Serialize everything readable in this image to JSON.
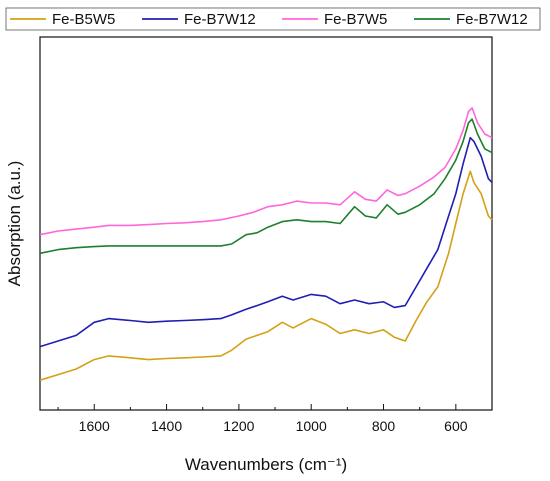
{
  "chart_data": {
    "type": "line",
    "xlabel": "Wavenumbers (cm⁻¹)",
    "ylabel": "Absorption (a.u.)",
    "x_reversed": true,
    "xlim": [
      1750,
      500
    ],
    "ylim": [
      0,
      1
    ],
    "y_ticks_shown": false,
    "grid": false,
    "legend_position": "top",
    "x_ticks": [
      1600,
      1400,
      1200,
      1000,
      800,
      600
    ],
    "x_tick_labels": [
      "1600",
      "1400",
      "1200",
      "1000",
      "800",
      "600"
    ],
    "series": [
      {
        "name": "Fe-B5W5",
        "color": "#D4A017",
        "points": [
          [
            1750,
            0.08
          ],
          [
            1700,
            0.095
          ],
          [
            1650,
            0.11
          ],
          [
            1600,
            0.135
          ],
          [
            1560,
            0.145
          ],
          [
            1500,
            0.14
          ],
          [
            1450,
            0.135
          ],
          [
            1400,
            0.138
          ],
          [
            1350,
            0.14
          ],
          [
            1300,
            0.142
          ],
          [
            1250,
            0.145
          ],
          [
            1220,
            0.16
          ],
          [
            1180,
            0.19
          ],
          [
            1150,
            0.2
          ],
          [
            1120,
            0.21
          ],
          [
            1080,
            0.235
          ],
          [
            1050,
            0.22
          ],
          [
            1000,
            0.245
          ],
          [
            960,
            0.23
          ],
          [
            920,
            0.205
          ],
          [
            880,
            0.215
          ],
          [
            840,
            0.205
          ],
          [
            800,
            0.215
          ],
          [
            770,
            0.195
          ],
          [
            740,
            0.185
          ],
          [
            710,
            0.24
          ],
          [
            680,
            0.29
          ],
          [
            650,
            0.33
          ],
          [
            620,
            0.42
          ],
          [
            600,
            0.5
          ],
          [
            580,
            0.58
          ],
          [
            560,
            0.64
          ],
          [
            550,
            0.61
          ],
          [
            530,
            0.58
          ],
          [
            510,
            0.52
          ],
          [
            500,
            0.51
          ]
        ]
      },
      {
        "name": "Fe-B7W12",
        "color": "#1F1FB4",
        "points": [
          [
            1750,
            0.17
          ],
          [
            1700,
            0.185
          ],
          [
            1650,
            0.2
          ],
          [
            1600,
            0.235
          ],
          [
            1560,
            0.245
          ],
          [
            1500,
            0.24
          ],
          [
            1450,
            0.235
          ],
          [
            1400,
            0.238
          ],
          [
            1350,
            0.24
          ],
          [
            1300,
            0.242
          ],
          [
            1250,
            0.245
          ],
          [
            1220,
            0.255
          ],
          [
            1180,
            0.27
          ],
          [
            1150,
            0.28
          ],
          [
            1120,
            0.29
          ],
          [
            1080,
            0.305
          ],
          [
            1050,
            0.295
          ],
          [
            1000,
            0.31
          ],
          [
            960,
            0.305
          ],
          [
            920,
            0.285
          ],
          [
            880,
            0.295
          ],
          [
            840,
            0.285
          ],
          [
            800,
            0.29
          ],
          [
            770,
            0.275
          ],
          [
            740,
            0.28
          ],
          [
            710,
            0.33
          ],
          [
            680,
            0.38
          ],
          [
            650,
            0.43
          ],
          [
            620,
            0.52
          ],
          [
            600,
            0.58
          ],
          [
            580,
            0.66
          ],
          [
            560,
            0.73
          ],
          [
            550,
            0.72
          ],
          [
            530,
            0.68
          ],
          [
            510,
            0.62
          ],
          [
            500,
            0.61
          ]
        ]
      },
      {
        "name": "Fe-B7W5",
        "color": "#FF66DD",
        "points": [
          [
            1750,
            0.47
          ],
          [
            1700,
            0.48
          ],
          [
            1650,
            0.485
          ],
          [
            1600,
            0.49
          ],
          [
            1560,
            0.495
          ],
          [
            1500,
            0.495
          ],
          [
            1450,
            0.497
          ],
          [
            1400,
            0.5
          ],
          [
            1350,
            0.502
          ],
          [
            1300,
            0.505
          ],
          [
            1250,
            0.51
          ],
          [
            1200,
            0.52
          ],
          [
            1160,
            0.53
          ],
          [
            1120,
            0.545
          ],
          [
            1080,
            0.55
          ],
          [
            1040,
            0.56
          ],
          [
            1000,
            0.555
          ],
          [
            960,
            0.555
          ],
          [
            920,
            0.55
          ],
          [
            880,
            0.585
          ],
          [
            850,
            0.565
          ],
          [
            820,
            0.56
          ],
          [
            790,
            0.59
          ],
          [
            760,
            0.575
          ],
          [
            740,
            0.58
          ],
          [
            700,
            0.6
          ],
          [
            660,
            0.625
          ],
          [
            630,
            0.65
          ],
          [
            600,
            0.7
          ],
          [
            580,
            0.75
          ],
          [
            565,
            0.8
          ],
          [
            555,
            0.81
          ],
          [
            540,
            0.77
          ],
          [
            520,
            0.74
          ],
          [
            500,
            0.73
          ]
        ]
      },
      {
        "name": "Fe-B7W12",
        "color": "#1E7F2E",
        "points": [
          [
            1750,
            0.42
          ],
          [
            1700,
            0.43
          ],
          [
            1650,
            0.435
          ],
          [
            1600,
            0.438
          ],
          [
            1560,
            0.44
          ],
          [
            1500,
            0.44
          ],
          [
            1450,
            0.44
          ],
          [
            1400,
            0.44
          ],
          [
            1350,
            0.44
          ],
          [
            1300,
            0.44
          ],
          [
            1250,
            0.44
          ],
          [
            1220,
            0.445
          ],
          [
            1180,
            0.47
          ],
          [
            1150,
            0.475
          ],
          [
            1120,
            0.49
          ],
          [
            1080,
            0.505
          ],
          [
            1040,
            0.51
          ],
          [
            1000,
            0.505
          ],
          [
            960,
            0.505
          ],
          [
            920,
            0.5
          ],
          [
            880,
            0.545
          ],
          [
            850,
            0.52
          ],
          [
            820,
            0.515
          ],
          [
            790,
            0.55
          ],
          [
            760,
            0.525
          ],
          [
            740,
            0.53
          ],
          [
            700,
            0.55
          ],
          [
            660,
            0.58
          ],
          [
            630,
            0.62
          ],
          [
            600,
            0.67
          ],
          [
            580,
            0.72
          ],
          [
            565,
            0.77
          ],
          [
            555,
            0.78
          ],
          [
            540,
            0.74
          ],
          [
            520,
            0.7
          ],
          [
            500,
            0.69
          ]
        ]
      }
    ]
  }
}
